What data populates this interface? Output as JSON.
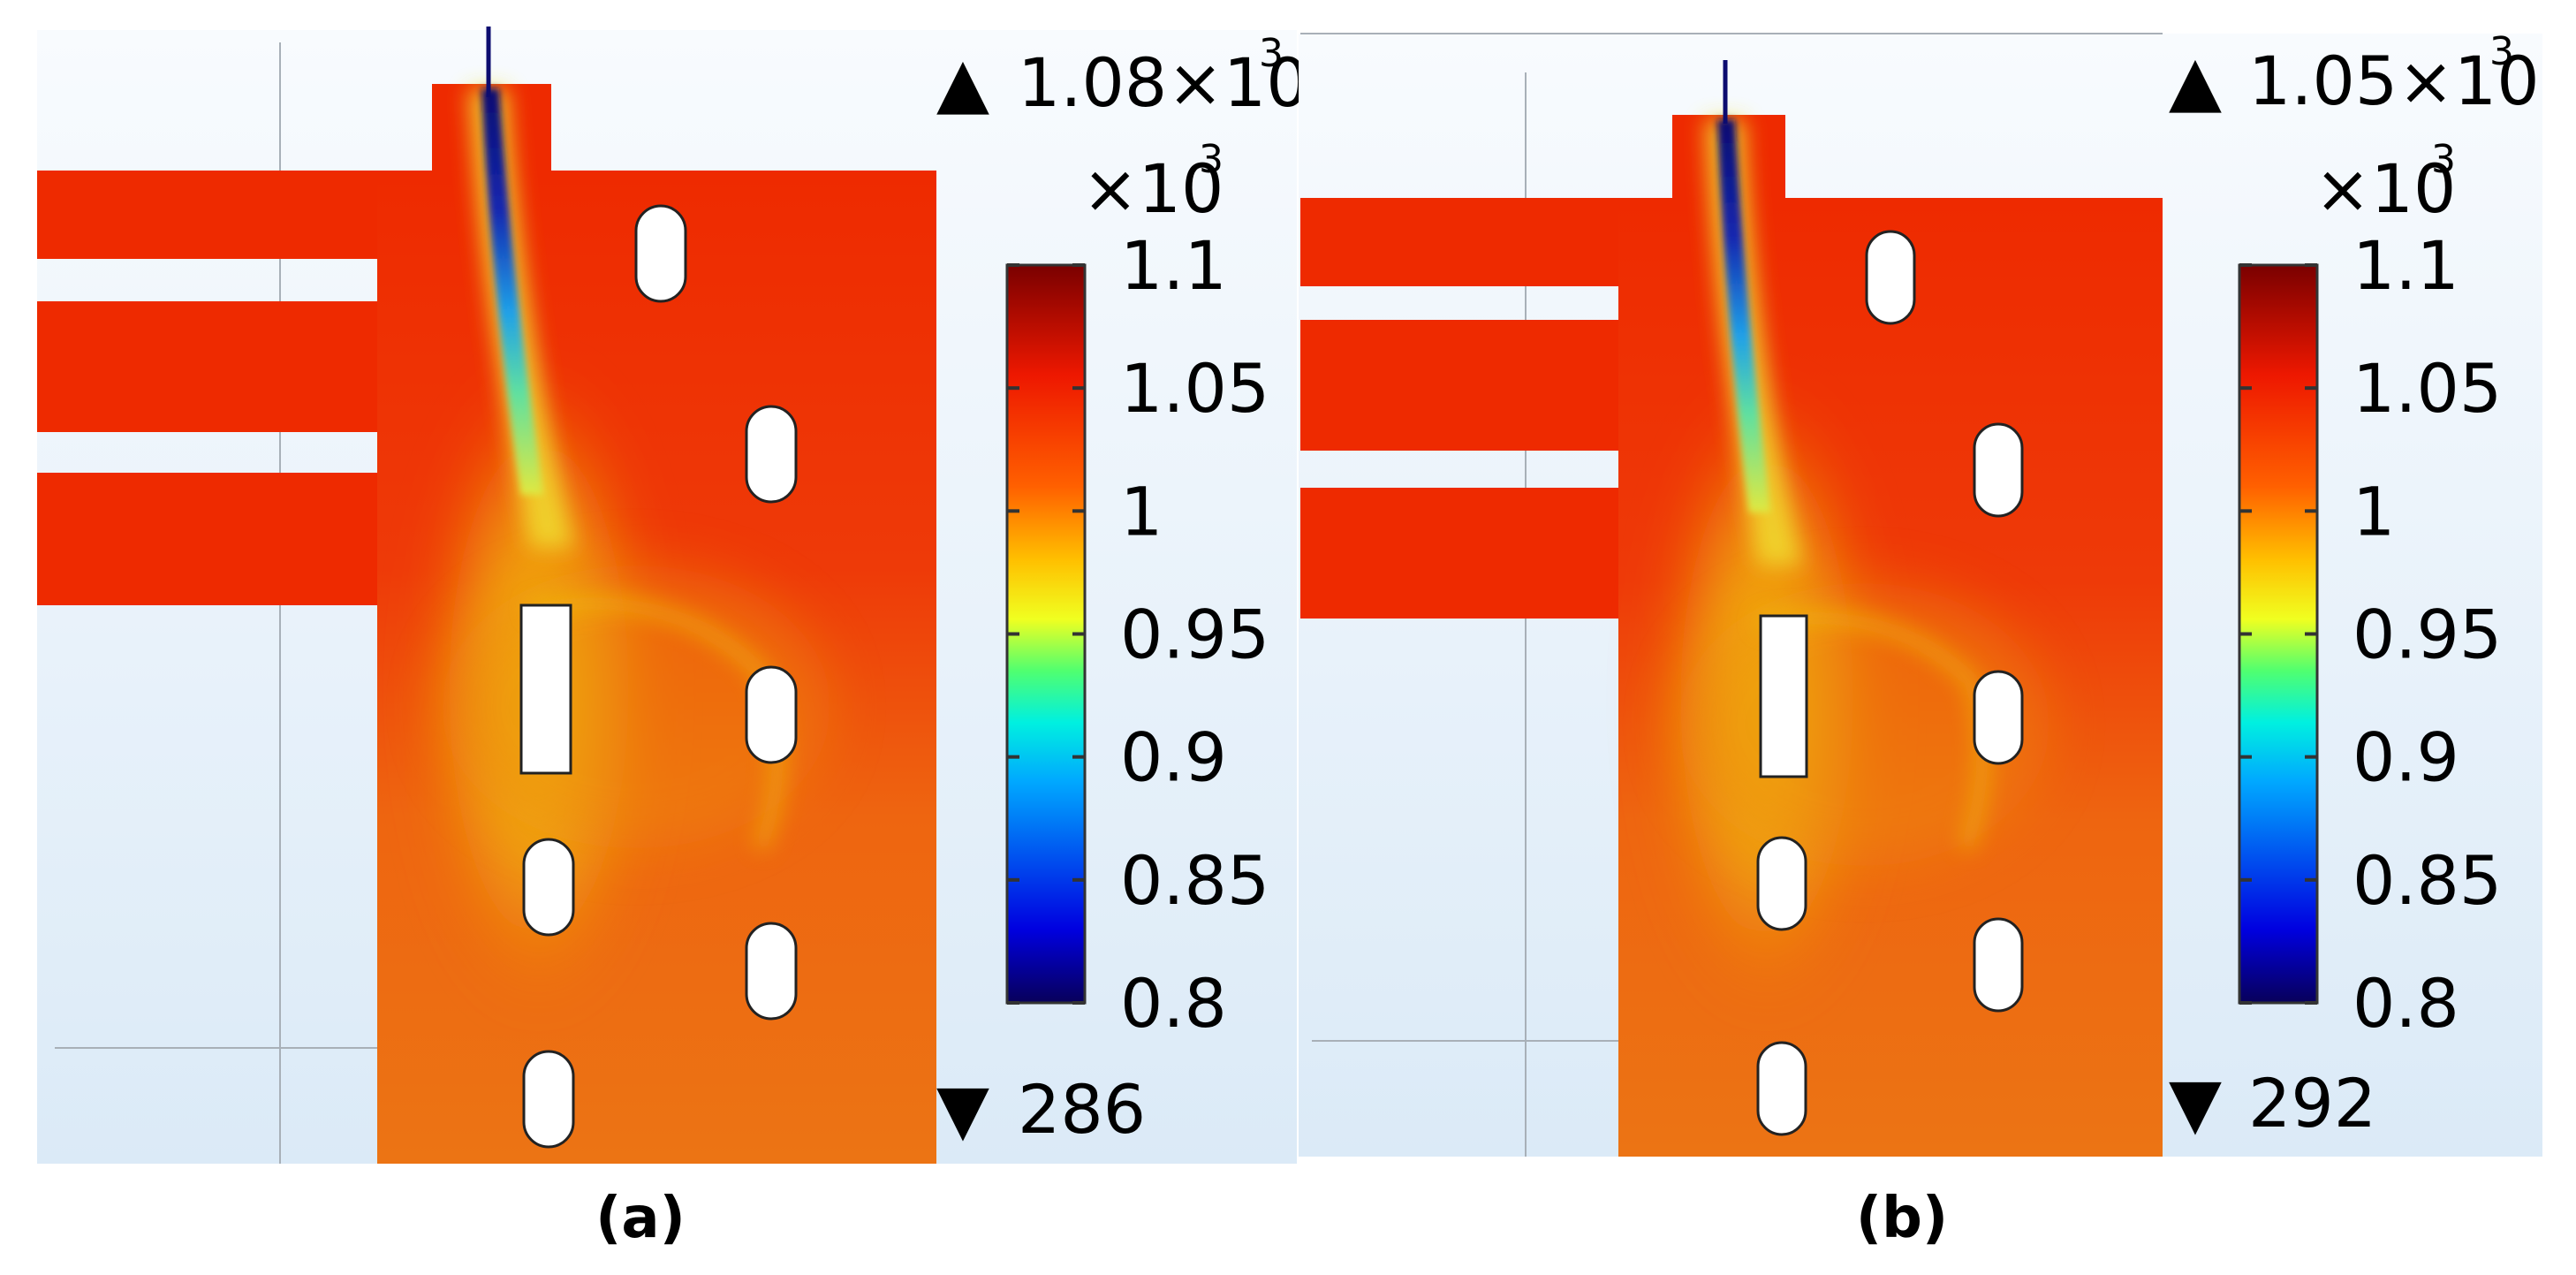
{
  "figure": {
    "panels": [
      {
        "label": "(a)",
        "max_text": "1.08×10",
        "max_exp": "3",
        "min_text": "286",
        "scale_text": "×10",
        "scale_exp": "3"
      },
      {
        "label": "(b)",
        "max_text": "1.05×10",
        "max_exp": "3",
        "min_text": "292",
        "scale_text": "×10",
        "scale_exp": "3"
      }
    ],
    "markers": {
      "max": "▲",
      "min": "▼"
    }
  },
  "chart_data": [
    {
      "type": "heatmap",
      "title": "(a)",
      "colorbar": {
        "ticks": [
          1.1,
          1.05,
          1,
          0.95,
          0.9,
          0.85,
          0.8
        ],
        "tick_labels": [
          "1.1",
          "1.05",
          "1",
          "0.95",
          "0.9",
          "0.85",
          "0.8"
        ],
        "range": [
          0.8,
          1.1
        ],
        "multiplier": "×10^3",
        "colormap": "rainbow",
        "colors": [
          "#08005a",
          "#0000e0",
          "#00a8ff",
          "#00f0e0",
          "#50ff70",
          "#f0ff20",
          "#ffc000",
          "#ff6000",
          "#ee1800",
          "#7a0000"
        ]
      },
      "field_max": 1080,
      "field_min": 286,
      "field_colors": {
        "bulk": "#ee2a00",
        "jet_core": "#0c1080",
        "plume": "#f0dc10",
        "lower_region": "#ee6c10"
      }
    },
    {
      "type": "heatmap",
      "title": "(b)",
      "colorbar": {
        "ticks": [
          1.1,
          1.05,
          1,
          0.95,
          0.9,
          0.85,
          0.8
        ],
        "tick_labels": [
          "1.1",
          "1.05",
          "1",
          "0.95",
          "0.9",
          "0.85",
          "0.8"
        ],
        "range": [
          0.8,
          1.1
        ],
        "multiplier": "×10^3",
        "colormap": "rainbow",
        "colors": [
          "#08005a",
          "#0000e0",
          "#00a8ff",
          "#00f0e0",
          "#50ff70",
          "#f0ff20",
          "#ffc000",
          "#ff6000",
          "#ee1800",
          "#7a0000"
        ]
      },
      "field_max": 1050,
      "field_min": 292,
      "field_colors": {
        "bulk": "#ee2a00",
        "jet_core": "#0c1080",
        "plume": "#f0dc10",
        "lower_region": "#ee6c10"
      }
    }
  ]
}
